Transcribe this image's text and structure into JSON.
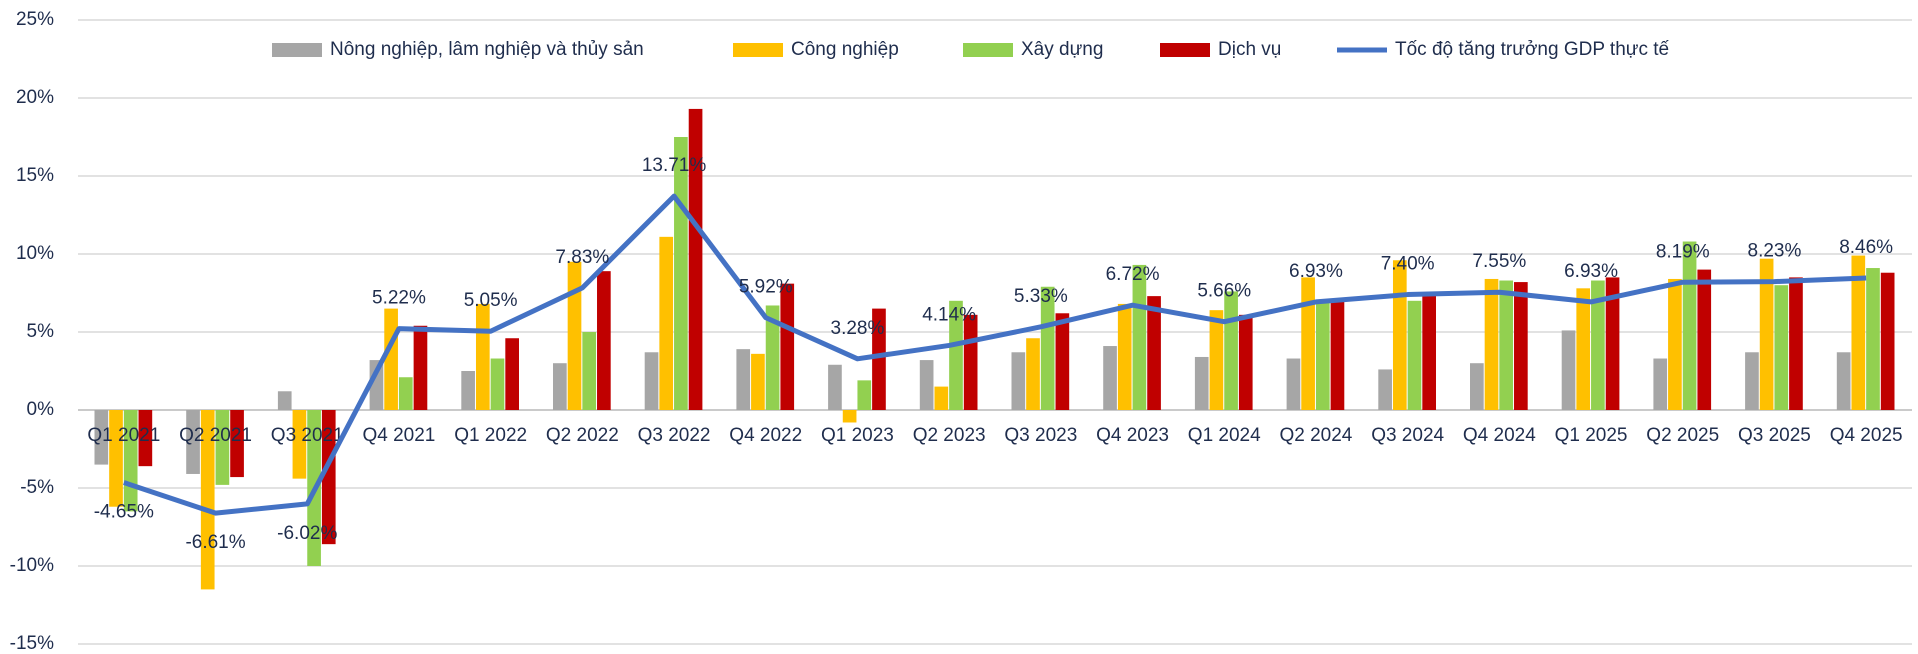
{
  "chart_data": {
    "type": "bar",
    "categories": [
      "Q1 2021",
      "Q2 2021",
      "Q3 2021",
      "Q4 2021",
      "Q1 2022",
      "Q2 2022",
      "Q3 2022",
      "Q4 2022",
      "Q1 2023",
      "Q2 2023",
      "Q3 2023",
      "Q4 2023",
      "Q1 2024",
      "Q2 2024",
      "Q3 2024",
      "Q4 2024",
      "Q1 2025",
      "Q2 2025",
      "Q3 2025",
      "Q4 2025"
    ],
    "series": [
      {
        "name": "Nông nghiệp, lâm nghiệp và thủy sản",
        "type": "bar",
        "color": "#a6a6a6",
        "values": [
          -3.5,
          -4.1,
          1.2,
          3.2,
          2.5,
          3.0,
          3.7,
          3.9,
          2.9,
          3.2,
          3.7,
          4.1,
          3.4,
          3.3,
          2.6,
          3.0,
          5.1,
          3.3,
          3.7,
          3.7
        ]
      },
      {
        "name": "Công nghiệp",
        "type": "bar",
        "color": "#ffc000",
        "values": [
          -6.2,
          -11.5,
          -4.4,
          6.5,
          6.8,
          9.5,
          11.1,
          3.6,
          -0.8,
          1.5,
          4.6,
          6.8,
          6.4,
          8.5,
          9.6,
          8.4,
          7.8,
          8.4,
          9.7,
          9.9
        ]
      },
      {
        "name": "Xây dựng",
        "type": "bar",
        "color": "#92d050",
        "values": [
          -6.5,
          -4.8,
          -10.0,
          2.1,
          3.3,
          5.0,
          17.5,
          6.7,
          1.9,
          7.0,
          7.9,
          9.3,
          7.6,
          7.0,
          7.0,
          8.3,
          8.3,
          10.8,
          8.0,
          9.1
        ]
      },
      {
        "name": "Dịch vụ",
        "type": "bar",
        "color": "#c00000",
        "values": [
          -3.6,
          -4.3,
          -8.6,
          5.4,
          4.6,
          8.9,
          19.3,
          8.1,
          6.5,
          6.1,
          6.2,
          7.3,
          6.1,
          7.1,
          7.5,
          8.2,
          8.5,
          9.0,
          8.5,
          8.8
        ]
      },
      {
        "name": "Tốc độ tăng trưởng GDP thực tế",
        "type": "line",
        "color": "#4472c4",
        "values": [
          -4.65,
          -6.61,
          -6.02,
          5.22,
          5.05,
          7.83,
          13.71,
          5.92,
          3.28,
          4.14,
          5.33,
          6.72,
          5.66,
          6.93,
          7.4,
          7.55,
          6.93,
          8.19,
          8.23,
          8.46
        ],
        "value_labels": [
          "-4.65%",
          "-6.61%",
          "-6.02%",
          "5.22%",
          "5.05%",
          "7.83%",
          "13.71%",
          "5.92%",
          "3.28%",
          "4.14%",
          "5.33%",
          "6.72%",
          "5.66%",
          "6.93%",
          "7.40%",
          "7.55%",
          "6.93%",
          "8.19%",
          "8.23%",
          "8.46%"
        ]
      }
    ],
    "ylim": [
      -15,
      25
    ],
    "yticks": [
      {
        "value": -15,
        "label": "-15%"
      },
      {
        "value": -10,
        "label": "-10%"
      },
      {
        "value": -5,
        "label": "-5%"
      },
      {
        "value": 0,
        "label": "0%"
      },
      {
        "value": 5,
        "label": "5%"
      },
      {
        "value": 10,
        "label": "10%"
      },
      {
        "value": 15,
        "label": "15%"
      },
      {
        "value": 20,
        "label": "20%"
      },
      {
        "value": 25,
        "label": "25%"
      }
    ],
    "grid": true,
    "legend": "top"
  }
}
